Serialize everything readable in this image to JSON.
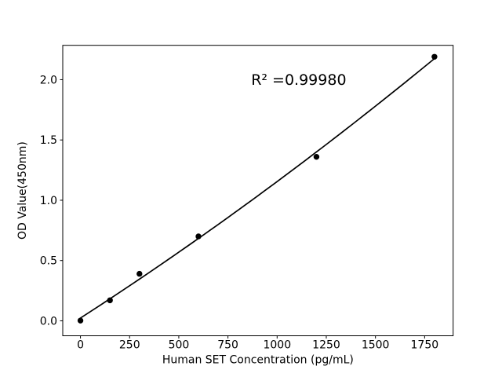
{
  "figure": {
    "background": "#ffffff"
  },
  "chart_data": {
    "type": "scatter",
    "title": "",
    "xlabel": "Human SET Concentration (pg/mL)",
    "ylabel": "OD Value(450nm)",
    "annotation": {
      "text": "R² =0.99980",
      "x": 1110,
      "y": 2.0
    },
    "x": [
      0,
      150,
      300,
      600,
      1200,
      1800
    ],
    "y": [
      0.002,
      0.17,
      0.39,
      0.7,
      1.36,
      2.19
    ],
    "x_ticks": [
      "0",
      "250",
      "500",
      "750",
      "1000",
      "1250",
      "1500",
      "1750"
    ],
    "y_ticks": [
      "0.0",
      "0.5",
      "1.0",
      "1.5",
      "2.0"
    ],
    "xlim": [
      -90,
      1895
    ],
    "ylim": [
      -0.124,
      2.285
    ],
    "grid": false,
    "legend": "none",
    "trend_line": {
      "type": "quadratic",
      "coefficients": [
        0.0229,
        0.0010528,
        7.93e-08
      ],
      "x_range": [
        0,
        1800
      ]
    },
    "colors": {
      "marker": "#000000",
      "line": "#000000",
      "axes": "#000000",
      "text": "#000000",
      "background": "#ffffff"
    }
  }
}
